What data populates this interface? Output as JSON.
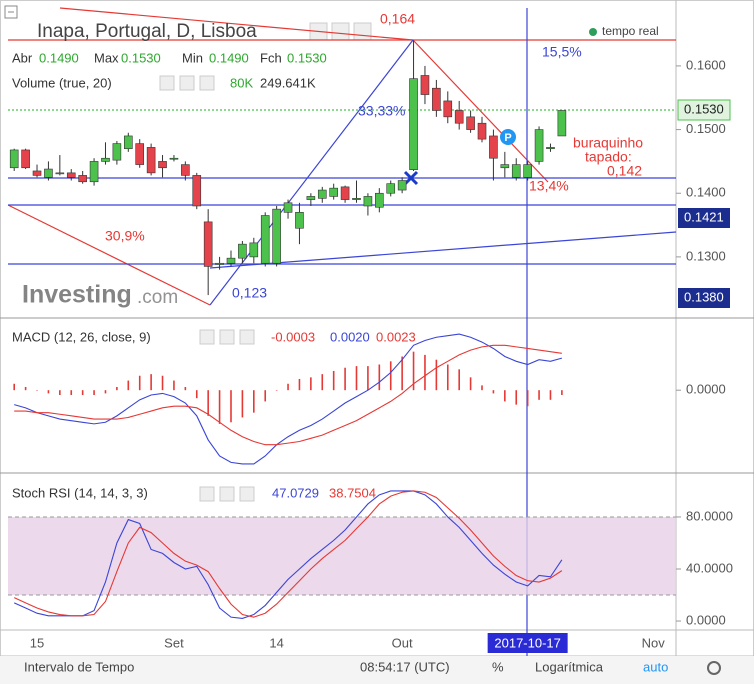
{
  "chart_data": [
    {
      "type": "candlestick",
      "title": "Inapa, Portugal, D, Lisboa",
      "categories": [
        null,
        null,
        "15",
        null,
        null,
        null,
        null,
        null,
        null,
        null,
        null,
        null,
        null,
        null,
        "Set",
        null,
        null,
        null,
        null,
        null,
        null,
        null,
        null,
        "14",
        null,
        null,
        null,
        null,
        null,
        null,
        null,
        null,
        null,
        null,
        "Out",
        null,
        null,
        null,
        null,
        null,
        null,
        null,
        null,
        null,
        null,
        "2017-10-17",
        null,
        null,
        null,
        null,
        null,
        null,
        null,
        null,
        null,
        null,
        "Nov"
      ],
      "open": [
        0.144,
        0.1468,
        0.1435,
        0.1425,
        0.1432,
        0.1432,
        0.1428,
        0.1418,
        0.145,
        0.1452,
        0.147,
        0.1478,
        0.1472,
        0.145,
        0.1455,
        0.1445,
        0.1428,
        0.1355,
        0.1288,
        0.129,
        0.1298,
        0.13,
        0.129,
        0.129,
        0.137,
        0.1345,
        0.139,
        0.1392,
        0.1395,
        0.141,
        0.139,
        0.138,
        0.1378,
        0.14,
        0.1405,
        0.1437,
        0.1585,
        0.1565,
        0.1545,
        0.153,
        0.152,
        0.151,
        0.149,
        0.144,
        0.1425,
        0.1425,
        0.145,
        0.147,
        0.149,
        null,
        null,
        null,
        null,
        null,
        null,
        null,
        null
      ],
      "high": [
        0.147,
        0.147,
        0.1445,
        0.145,
        0.146,
        0.1438,
        0.1435,
        0.1455,
        0.148,
        0.1482,
        0.1495,
        0.1485,
        0.1478,
        0.146,
        0.146,
        0.145,
        0.1432,
        0.1375,
        0.13,
        0.131,
        0.1325,
        0.133,
        0.137,
        0.138,
        0.139,
        0.1385,
        0.14,
        0.141,
        0.1415,
        0.1412,
        0.142,
        0.14,
        0.1408,
        0.142,
        0.1425,
        0.164,
        0.16,
        0.1578,
        0.156,
        0.1545,
        0.153,
        0.152,
        0.15,
        0.1465,
        0.1455,
        0.145,
        0.1505,
        0.1478,
        0.153,
        null,
        null,
        null,
        null,
        null,
        null,
        null,
        null
      ],
      "low": [
        0.1435,
        0.1438,
        0.1425,
        0.142,
        0.1428,
        0.142,
        0.1415,
        0.1412,
        0.1445,
        0.1445,
        0.1465,
        0.144,
        0.1428,
        0.1425,
        0.145,
        0.142,
        0.1375,
        0.124,
        0.128,
        0.1285,
        0.129,
        0.129,
        0.1285,
        0.1285,
        0.136,
        0.132,
        0.138,
        0.1385,
        0.139,
        0.1385,
        0.1385,
        0.1365,
        0.137,
        0.1395,
        0.14,
        0.1435,
        0.154,
        0.152,
        0.151,
        0.15,
        0.1495,
        0.148,
        0.142,
        0.1425,
        0.142,
        0.142,
        0.1445,
        0.1465,
        0.149,
        null,
        null,
        null,
        null,
        null,
        null,
        null,
        null
      ],
      "close": [
        0.1468,
        0.144,
        0.1428,
        0.1438,
        0.1432,
        0.1425,
        0.1418,
        0.145,
        0.1455,
        0.1478,
        0.149,
        0.1445,
        0.1432,
        0.144,
        0.1455,
        0.1428,
        0.138,
        0.1285,
        0.129,
        0.1298,
        0.132,
        0.1322,
        0.1365,
        0.1375,
        0.1385,
        0.137,
        0.1395,
        0.1405,
        0.1408,
        0.139,
        0.1392,
        0.1395,
        0.14,
        0.1415,
        0.142,
        0.158,
        0.1555,
        0.153,
        0.152,
        0.151,
        0.15,
        0.1485,
        0.1455,
        0.1445,
        0.1445,
        0.1445,
        0.15,
        0.1472,
        0.153,
        null,
        null,
        null,
        null,
        null,
        null,
        null,
        null
      ],
      "up_color": "#4cc24c",
      "down_color": "#e4434b",
      "ylim": [
        0.1204,
        0.1691
      ],
      "yticks": [
        {
          "value": 0.16,
          "label": "0.1600"
        },
        {
          "value": 0.15,
          "label": "0.1500"
        },
        {
          "value": 0.14,
          "label": "0.1400"
        },
        {
          "value": 0.13,
          "label": "0.1300"
        }
      ],
      "legend": "tempo real",
      "ohlc_header": [
        {
          "label": "Abr",
          "value": "0.1490"
        },
        {
          "label": "Max",
          "value": "0.1530"
        },
        {
          "label": "Min",
          "value": "0.1490"
        },
        {
          "label": "Fch",
          "value": "0.1530"
        }
      ],
      "volume_header": {
        "label": "Volume (true, 20)",
        "values": [
          "80K",
          "249.641K"
        ]
      },
      "price_tags": [
        "0.1530",
        "0.1421",
        "0.1380"
      ],
      "annotations": [
        "0,164",
        "15,5%",
        "33,33%",
        "buraquinho",
        "tapado:",
        "0,142",
        "13,4%",
        "30,9%",
        "0,123"
      ],
      "watermark": [
        "Investing",
        ".com"
      ]
    },
    {
      "type": "macd",
      "title": "MACD (12, 26, close, 9)",
      "series": [
        {
          "style": "histogram",
          "color": "#e53935",
          "last_label": "-0.0003",
          "values": [
            0.0004,
            0.0002,
            0,
            -0.0002,
            -0.0003,
            -0.0003,
            -0.0003,
            -0.0003,
            -0.0002,
            0.0002,
            0.0006,
            0.0009,
            0.001,
            0.0009,
            0.0006,
            0.0002,
            -0.0005,
            -0.0016,
            -0.0021,
            -0.002,
            -0.0017,
            -0.0014,
            -0.0007,
            0,
            0.0004,
            0.0007,
            0.0008,
            0.001,
            0.0012,
            0.0014,
            0.0015,
            0.0015,
            0.0016,
            0.0018,
            0.0021,
            0.0024,
            0.0022,
            0.0019,
            0.0016,
            0.0013,
            0.0008,
            0.0003,
            -0.0002,
            -0.0007,
            -0.0009,
            -0.001,
            -0.0006,
            -0.0006,
            -0.0003
          ]
        },
        {
          "style": "line",
          "color": "#3b45d6",
          "last_label": "0.0020",
          "values": [
            -0.0009,
            -0.0011,
            -0.0014,
            -0.0016,
            -0.0018,
            -0.0019,
            -0.002,
            -0.0021,
            -0.002,
            -0.0016,
            -0.0011,
            -0.0006,
            -0.0003,
            -0.0002,
            -0.0004,
            -0.0008,
            -0.0016,
            -0.0031,
            -0.0041,
            -0.0045,
            -0.0046,
            -0.0046,
            -0.0041,
            -0.0034,
            -0.0029,
            -0.0025,
            -0.0022,
            -0.0018,
            -0.0013,
            -0.0008,
            -0.0004,
            0,
            0.0005,
            0.0011,
            0.0019,
            0.0028,
            0.0031,
            0.0033,
            0.0034,
            0.0035,
            0.0033,
            0.003,
            0.0026,
            0.0021,
            0.0018,
            0.0016,
            0.0019,
            0.0018,
            0.002
          ]
        },
        {
          "style": "line",
          "color": "#e53935",
          "last_label": "0.0023",
          "values": [
            -0.0013,
            -0.0013,
            -0.0014,
            -0.0014,
            -0.0015,
            -0.0016,
            -0.0017,
            -0.0018,
            -0.0018,
            -0.0018,
            -0.0017,
            -0.0015,
            -0.0013,
            -0.0011,
            -0.001,
            -0.001,
            -0.0011,
            -0.0015,
            -0.002,
            -0.0025,
            -0.0029,
            -0.0032,
            -0.0034,
            -0.0034,
            -0.0033,
            -0.0032,
            -0.003,
            -0.0028,
            -0.0025,
            -0.0022,
            -0.0019,
            -0.0015,
            -0.0011,
            -0.0007,
            -0.0002,
            0.0004,
            0.0009,
            0.0014,
            0.0018,
            0.0022,
            0.0025,
            0.0027,
            0.0028,
            0.0028,
            0.0027,
            0.0026,
            0.0025,
            0.0024,
            0.0023
          ]
        }
      ],
      "ylim": [
        -0.0051,
        0.0045
      ],
      "yticks": [
        {
          "value": 0,
          "label": "0.0000"
        }
      ]
    },
    {
      "type": "stoch",
      "title": "Stoch RSI (14, 14, 3, 3)",
      "series": [
        {
          "color": "#3b45d6",
          "values": [
            14,
            10,
            6,
            4,
            4,
            4,
            4,
            8,
            30,
            60,
            78,
            75,
            55,
            52,
            45,
            40,
            42,
            28,
            10,
            3,
            2,
            5,
            12,
            22,
            32,
            40,
            48,
            55,
            62,
            70,
            80,
            90,
            97,
            100,
            100,
            100,
            97,
            90,
            80,
            72,
            62,
            52,
            43,
            36,
            30,
            27,
            35,
            34,
            47.0729
          ]
        },
        {
          "color": "#e53935",
          "values": [
            18,
            14,
            10,
            7,
            5,
            4,
            4,
            5,
            15,
            38,
            60,
            72,
            68,
            60,
            52,
            46,
            43,
            38,
            25,
            13,
            5,
            3,
            6,
            13,
            22,
            31,
            40,
            48,
            55,
            62,
            71,
            80,
            90,
            96,
            99,
            100,
            99,
            95,
            87,
            79,
            70,
            60,
            50,
            42,
            35,
            31,
            30,
            33,
            38.7504
          ]
        }
      ],
      "band": [
        20,
        80
      ],
      "band_color": "#e7cfe7",
      "ylim": [
        -6.9,
        113.8
      ],
      "yticks": [
        {
          "value": 80,
          "label": "80.0000"
        },
        {
          "value": 40,
          "label": "40.0000"
        },
        {
          "value": 0,
          "label": "0.0000"
        }
      ]
    }
  ],
  "footer": {
    "interval": "Intervalo de Tempo",
    "time": "08:54:17 (UTC)",
    "percent": "%",
    "log": "Logarítmica",
    "auto": "auto"
  }
}
